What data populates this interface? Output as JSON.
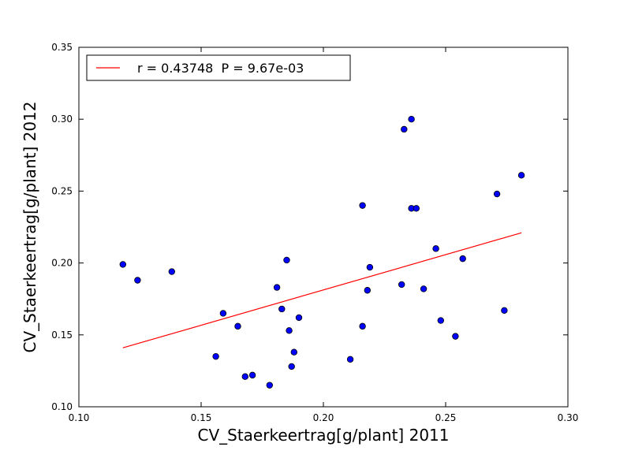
{
  "chart_data": {
    "type": "scatter",
    "title": "",
    "xlabel": "CV_Staerkeertrag[g/plant] 2011",
    "ylabel": "CV_Staerkeertrag[g/plant] 2012",
    "xlim": [
      0.1,
      0.3
    ],
    "ylim": [
      0.1,
      0.35
    ],
    "x_ticks": [
      "0.10",
      "0.15",
      "0.20",
      "0.25",
      "0.30"
    ],
    "y_ticks": [
      "0.10",
      "0.15",
      "0.20",
      "0.25",
      "0.30",
      "0.35"
    ],
    "grid": false,
    "legend_position": "top-left",
    "colors": {
      "points": "#0000ff",
      "point_edge": "#000000",
      "fit_line": "#ff0000"
    },
    "points": [
      {
        "x": 0.118,
        "y": 0.199
      },
      {
        "x": 0.124,
        "y": 0.188
      },
      {
        "x": 0.138,
        "y": 0.194
      },
      {
        "x": 0.156,
        "y": 0.135
      },
      {
        "x": 0.159,
        "y": 0.165
      },
      {
        "x": 0.165,
        "y": 0.156
      },
      {
        "x": 0.168,
        "y": 0.121
      },
      {
        "x": 0.171,
        "y": 0.122
      },
      {
        "x": 0.178,
        "y": 0.115
      },
      {
        "x": 0.181,
        "y": 0.183
      },
      {
        "x": 0.183,
        "y": 0.168
      },
      {
        "x": 0.185,
        "y": 0.202
      },
      {
        "x": 0.186,
        "y": 0.153
      },
      {
        "x": 0.187,
        "y": 0.128
      },
      {
        "x": 0.188,
        "y": 0.138
      },
      {
        "x": 0.19,
        "y": 0.162
      },
      {
        "x": 0.211,
        "y": 0.133
      },
      {
        "x": 0.216,
        "y": 0.24
      },
      {
        "x": 0.216,
        "y": 0.156
      },
      {
        "x": 0.218,
        "y": 0.181
      },
      {
        "x": 0.219,
        "y": 0.197
      },
      {
        "x": 0.232,
        "y": 0.185
      },
      {
        "x": 0.233,
        "y": 0.293
      },
      {
        "x": 0.236,
        "y": 0.3
      },
      {
        "x": 0.236,
        "y": 0.238
      },
      {
        "x": 0.238,
        "y": 0.238
      },
      {
        "x": 0.241,
        "y": 0.182
      },
      {
        "x": 0.246,
        "y": 0.21
      },
      {
        "x": 0.248,
        "y": 0.16
      },
      {
        "x": 0.254,
        "y": 0.149
      },
      {
        "x": 0.257,
        "y": 0.203
      },
      {
        "x": 0.271,
        "y": 0.248
      },
      {
        "x": 0.274,
        "y": 0.167
      },
      {
        "x": 0.281,
        "y": 0.261
      }
    ],
    "fit_line": {
      "x1": 0.118,
      "y1": 0.141,
      "x2": 0.281,
      "y2": 0.221
    },
    "legend": [
      {
        "label": "r = 0.43748  P = 9.67e-03",
        "color": "#ff0000",
        "marker": "line"
      }
    ]
  }
}
